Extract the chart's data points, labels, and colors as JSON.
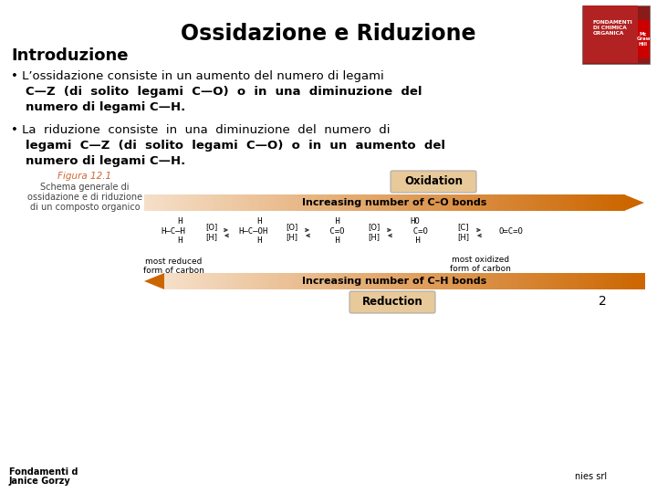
{
  "title": "Ossidazione e Riduzione",
  "subtitle": "Introduzione",
  "bullet1_normal": "• L’ossidazione consiste in un aumento del numero di legami",
  "bullet1_bold_1": "C—Z  (di  solito  legami  C—O)  o  in  una  diminuzione  del",
  "bullet1_bold_2": "numero di legami C—H.",
  "bullet2_normal": "• La  riduzione  consiste  in  una  diminuzione  del  numero  di",
  "bullet2_bold_1": "legami  C—Z  (di  solito  legami  C—O)  o  in  un  aumento  del",
  "bullet2_bold_2": "numero di legami C—H.",
  "figura_title": "Figura 12.1",
  "figura_desc": [
    "Schema generale di",
    "ossidazione e di riduzione",
    "di un composto organico"
  ],
  "oxidation_label": "Oxidation",
  "reduction_label": "Reduction",
  "arrow_top_text": "Increasing number of C–O bonds",
  "arrow_bottom_text": "Increasing number of C–H bonds",
  "most_reduced": "most reduced\nform of carbon",
  "most_oxidized": "most oxidized\nform of carbon",
  "footer_left1": "Fondamenti d",
  "footer_left2": "Janice Gorzy",
  "footer_right": "nies srl",
  "page_number": "2",
  "bg_color": "#ffffff",
  "title_color": "#000000",
  "body_color": "#000000",
  "figura_title_color": "#cc6633",
  "figura_desc_color": "#444444",
  "arrow_dark": "#cc6600",
  "arrow_light": "#f5dfc8",
  "box_fill": "#e8c99a",
  "box_edge": "#aaaaaa",
  "footer_color": "#000000"
}
